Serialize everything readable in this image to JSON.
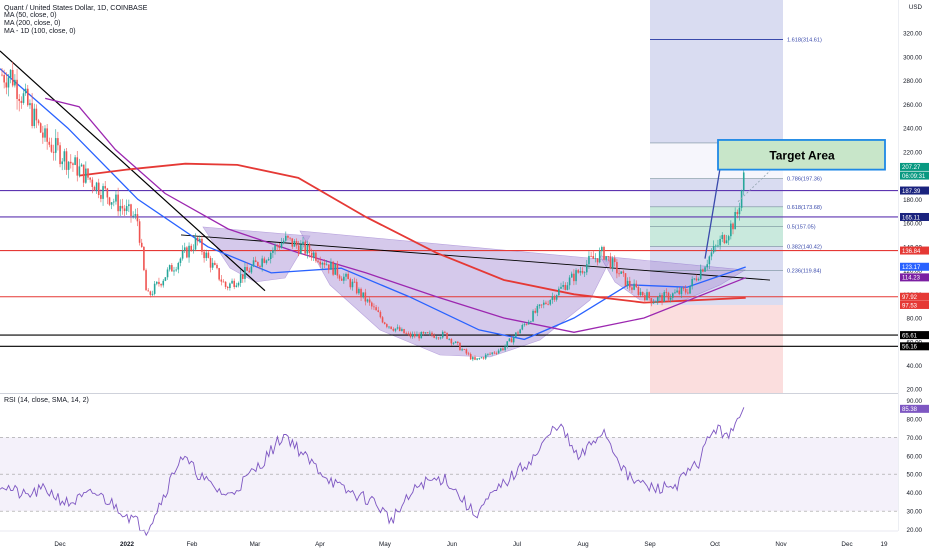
{
  "header": {
    "title": "Quant / United States Dollar, 1D, COINBASE",
    "ma50": "MA (50, close, 0)",
    "ma200": "MA (200, close, 0)",
    "ma1d": "MA - 1D (100, close, 0)",
    "rsi": "RSI (14, close, SMA, 14, 2)"
  },
  "colors": {
    "up": "#26a69a",
    "down": "#ef5350",
    "ma50": "#2962ff",
    "ma200": "#e53935",
    "ma100": "#9c27b0",
    "rsi": "#7e57c2",
    "fib_top": "#c5cae9",
    "fib_bottom": "#f8c8c8",
    "target": "#c8e6c9",
    "target_border": "#1e88e5",
    "price_badge": "#089981"
  },
  "chart_data": [
    {
      "type": "candlestick",
      "title": "Quant / United States Dollar, 1D, COINBASE",
      "ylabel": "USD",
      "y_ticks": [
        "320.00",
        "300.00",
        "280.00",
        "260.00",
        "240.00",
        "220.00",
        "200.00",
        "180.00",
        "160.00",
        "140.00",
        "120.00",
        "100.00",
        "80.00",
        "60.00",
        "40.00",
        "20.00"
      ],
      "x_ticks": [
        "Dec",
        "2022",
        "Feb",
        "Mar",
        "Apr",
        "May",
        "Jun",
        "Jul",
        "Aug",
        "Sep",
        "Oct",
        "Nov",
        "Dec",
        "19"
      ],
      "price_key_points": [
        {
          "x": "2021-11-25",
          "y": 285
        },
        {
          "x": "2021-12-10",
          "y": 230
        },
        {
          "x": "2021-12-25",
          "y": 205
        },
        {
          "x": "2022-01-10",
          "y": 178
        },
        {
          "x": "2022-01-20",
          "y": 162
        },
        {
          "x": "2022-01-24",
          "y": 97
        },
        {
          "x": "2022-02-02",
          "y": 118
        },
        {
          "x": "2022-02-15",
          "y": 145
        },
        {
          "x": "2022-02-28",
          "y": 106
        },
        {
          "x": "2022-03-10",
          "y": 120
        },
        {
          "x": "2022-03-26",
          "y": 146
        },
        {
          "x": "2022-04-10",
          "y": 132
        },
        {
          "x": "2022-04-25",
          "y": 108
        },
        {
          "x": "2022-05-10",
          "y": 75
        },
        {
          "x": "2022-05-20",
          "y": 65
        },
        {
          "x": "2022-06-05",
          "y": 66
        },
        {
          "x": "2022-06-18",
          "y": 44
        },
        {
          "x": "2022-07-01",
          "y": 55
        },
        {
          "x": "2022-07-15",
          "y": 85
        },
        {
          "x": "2022-07-28",
          "y": 108
        },
        {
          "x": "2022-08-08",
          "y": 128
        },
        {
          "x": "2022-08-14",
          "y": 135
        },
        {
          "x": "2022-08-25",
          "y": 108
        },
        {
          "x": "2022-09-05",
          "y": 95
        },
        {
          "x": "2022-09-20",
          "y": 103
        },
        {
          "x": "2022-09-30",
          "y": 132
        },
        {
          "x": "2022-10-07",
          "y": 150
        },
        {
          "x": "2022-10-12",
          "y": 165
        },
        {
          "x": "2022-10-16",
          "y": 207
        }
      ],
      "moving_averages": [
        {
          "name": "MA (50, close, 0)",
          "points": [
            {
              "x": "2021-11-20",
              "y": 290
            },
            {
              "x": "2021-12-20",
              "y": 240
            },
            {
              "x": "2022-01-20",
              "y": 180
            },
            {
              "x": "2022-02-20",
              "y": 140
            },
            {
              "x": "2022-03-20",
              "y": 118
            },
            {
              "x": "2022-04-20",
              "y": 122
            },
            {
              "x": "2022-05-20",
              "y": 98
            },
            {
              "x": "2022-06-20",
              "y": 70
            },
            {
              "x": "2022-07-10",
              "y": 62
            },
            {
              "x": "2022-08-01",
              "y": 80
            },
            {
              "x": "2022-08-25",
              "y": 108
            },
            {
              "x": "2022-09-20",
              "y": 106
            },
            {
              "x": "2022-10-16",
              "y": 123
            }
          ]
        },
        {
          "name": "MA (200, close, 0)",
          "points": [
            {
              "x": "2021-12-25",
              "y": 200
            },
            {
              "x": "2022-01-15",
              "y": 205
            },
            {
              "x": "2022-02-10",
              "y": 210
            },
            {
              "x": "2022-03-05",
              "y": 209
            },
            {
              "x": "2022-04-01",
              "y": 198
            },
            {
              "x": "2022-05-01",
              "y": 165
            },
            {
              "x": "2022-06-01",
              "y": 135
            },
            {
              "x": "2022-07-01",
              "y": 112
            },
            {
              "x": "2022-08-01",
              "y": 100
            },
            {
              "x": "2022-09-01",
              "y": 93
            },
            {
              "x": "2022-10-16",
              "y": 97
            }
          ]
        },
        {
          "name": "MA - 1D (100, close, 0)",
          "points": [
            {
              "x": "2021-12-10",
              "y": 265
            },
            {
              "x": "2021-12-25",
              "y": 258
            },
            {
              "x": "2022-01-10",
              "y": 222
            },
            {
              "x": "2022-02-01",
              "y": 185
            },
            {
              "x": "2022-03-01",
              "y": 155
            },
            {
              "x": "2022-04-01",
              "y": 135
            },
            {
              "x": "2022-05-01",
              "y": 118
            },
            {
              "x": "2022-06-01",
              "y": 98
            },
            {
              "x": "2022-07-01",
              "y": 80
            },
            {
              "x": "2022-08-01",
              "y": 68
            },
            {
              "x": "2022-09-01",
              "y": 80
            },
            {
              "x": "2022-10-16",
              "y": 114
            }
          ]
        }
      ],
      "horizontal_levels": [
        {
          "label": "187.39",
          "y": 187.39,
          "color": "#5e35b1"
        },
        {
          "label": "165.11",
          "y": 165.11,
          "color": "#5e35b1"
        },
        {
          "label": "136.84",
          "y": 136.84,
          "color": "#e53935"
        },
        {
          "label": "97.92",
          "y": 97.92,
          "color": "#e53935"
        },
        {
          "label": "65.61",
          "y": 65.61,
          "color": "#000000"
        },
        {
          "label": "56.16",
          "y": 56.16,
          "color": "#000000"
        }
      ],
      "fibonacci": [
        {
          "label": "1.618(314.61)",
          "y": 314.61
        },
        {
          "label": "1(227.51)",
          "y": 227.51
        },
        {
          "label": "0.786(197.36)",
          "y": 197.36
        },
        {
          "label": "0.618(173.68)",
          "y": 173.68
        },
        {
          "label": "0.5(157.05)",
          "y": 157.05
        },
        {
          "label": "0.382(140.42)",
          "y": 140.42
        },
        {
          "label": "0.236(119.84)",
          "y": 119.84
        }
      ],
      "annotations": [
        {
          "text": "Target Area",
          "y_from": 205,
          "y_to": 230
        }
      ],
      "price_labels": [
        {
          "text": "207.27",
          "y": 207.27,
          "color": "#089981"
        },
        {
          "text": "06:09:31",
          "y": 200,
          "color": "#089981"
        },
        {
          "text": "187.39",
          "y": 187.39,
          "color": "#1a237e"
        },
        {
          "text": "165.11",
          "y": 165.11,
          "color": "#1a237e"
        },
        {
          "text": "136.84",
          "y": 136.84,
          "color": "#e53935"
        },
        {
          "text": "123.17",
          "y": 123.17,
          "color": "#2962ff"
        },
        {
          "text": "114.23",
          "y": 114.23,
          "color": "#7b1fa2"
        },
        {
          "text": "97.92",
          "y": 97.92,
          "color": "#e53935"
        },
        {
          "text": "97.53",
          "y": 91,
          "color": "#e53935"
        },
        {
          "text": "65.61",
          "y": 65.61,
          "color": "#000000"
        },
        {
          "text": "56.16",
          "y": 56.16,
          "color": "#000000"
        }
      ]
    },
    {
      "type": "line",
      "title": "RSI (14, close, SMA, 14, 2)",
      "y_ticks": [
        "90.00",
        "80.00",
        "70.00",
        "60.00",
        "50.00",
        "40.00",
        "30.00",
        "20.00"
      ],
      "levels": [
        70,
        50,
        30
      ],
      "current_value": "85.38",
      "points": [
        {
          "x": "2021-11-20",
          "y": 45
        },
        {
          "x": "2021-12-01",
          "y": 38
        },
        {
          "x": "2021-12-10",
          "y": 42
        },
        {
          "x": "2021-12-20",
          "y": 34
        },
        {
          "x": "2022-01-01",
          "y": 40
        },
        {
          "x": "2022-01-10",
          "y": 33
        },
        {
          "x": "2022-01-24",
          "y": 20
        },
        {
          "x": "2022-02-01",
          "y": 40
        },
        {
          "x": "2022-02-08",
          "y": 60
        },
        {
          "x": "2022-02-20",
          "y": 45
        },
        {
          "x": "2022-03-01",
          "y": 38
        },
        {
          "x": "2022-03-15",
          "y": 55
        },
        {
          "x": "2022-03-26",
          "y": 72
        },
        {
          "x": "2022-04-05",
          "y": 58
        },
        {
          "x": "2022-04-20",
          "y": 42
        },
        {
          "x": "2022-05-05",
          "y": 35
        },
        {
          "x": "2022-05-12",
          "y": 25
        },
        {
          "x": "2022-05-25",
          "y": 45
        },
        {
          "x": "2022-06-05",
          "y": 48
        },
        {
          "x": "2022-06-18",
          "y": 28
        },
        {
          "x": "2022-07-01",
          "y": 45
        },
        {
          "x": "2022-07-15",
          "y": 60
        },
        {
          "x": "2022-07-25",
          "y": 78
        },
        {
          "x": "2022-08-03",
          "y": 58
        },
        {
          "x": "2022-08-14",
          "y": 74
        },
        {
          "x": "2022-08-25",
          "y": 48
        },
        {
          "x": "2022-09-05",
          "y": 42
        },
        {
          "x": "2022-09-15",
          "y": 44
        },
        {
          "x": "2022-09-25",
          "y": 56
        },
        {
          "x": "2022-10-01",
          "y": 74
        },
        {
          "x": "2022-10-10",
          "y": 72
        },
        {
          "x": "2022-10-16",
          "y": 86
        }
      ]
    }
  ]
}
